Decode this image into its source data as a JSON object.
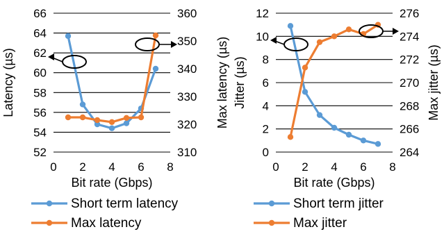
{
  "chart_data": [
    {
      "type": "line",
      "xlabel": "Bit rate (Gbps)",
      "ylabel": "Latency (µs)",
      "y2label": "Max latency (µs)",
      "xlim": [
        0,
        8
      ],
      "xticks": [
        "0",
        "2",
        "4",
        "6",
        "8"
      ],
      "ylim": [
        52,
        66
      ],
      "yticks": [
        "52",
        "54",
        "56",
        "58",
        "60",
        "62",
        "64",
        "66"
      ],
      "y2lim": [
        310,
        360
      ],
      "y2ticks": [
        "310",
        "320",
        "330",
        "340",
        "350",
        "360"
      ],
      "grid": "horizontal",
      "legend_position": "bottom",
      "series": [
        {
          "name": "Short term latency",
          "axis": "left",
          "color": "#5b9bd5",
          "x": [
            1,
            2,
            3,
            4,
            5,
            6,
            7
          ],
          "y": [
            63.7,
            56.8,
            54.8,
            54.4,
            54.9,
            56.4,
            60.4
          ]
        },
        {
          "name": "Max latency",
          "axis": "right",
          "color": "#ed7d31",
          "x": [
            1,
            2,
            3,
            4,
            5,
            6,
            7
          ],
          "y": [
            322.5,
            322.5,
            321.5,
            320.8,
            322.3,
            322.5,
            352
          ]
        }
      ]
    },
    {
      "type": "line",
      "xlabel": "Bit rate (Gbps)",
      "ylabel": "Jitter (µs)",
      "y2label": "Max jitter (µs)",
      "xlim": [
        0,
        8
      ],
      "xticks": [
        "0",
        "2",
        "4",
        "6",
        "8"
      ],
      "ylim": [
        0,
        12
      ],
      "yticks": [
        "0",
        "2",
        "4",
        "6",
        "8",
        "10",
        "12"
      ],
      "y2lim": [
        264,
        276
      ],
      "y2ticks": [
        "264",
        "266",
        "268",
        "270",
        "272",
        "274",
        "276"
      ],
      "grid": "horizontal",
      "legend_position": "bottom",
      "series": [
        {
          "name": "Short term jitter",
          "axis": "left",
          "color": "#5b9bd5",
          "x": [
            1,
            2,
            3,
            4,
            5,
            6,
            7
          ],
          "y": [
            10.9,
            5.2,
            3.2,
            2.1,
            1.5,
            1.0,
            0.7
          ]
        },
        {
          "name": "Max jitter",
          "axis": "right",
          "color": "#ed7d31",
          "x": [
            1,
            2,
            3,
            4,
            5,
            6,
            7
          ],
          "y": [
            265.3,
            271.3,
            273.5,
            274.0,
            274.6,
            274.2,
            275.0
          ]
        }
      ]
    }
  ]
}
